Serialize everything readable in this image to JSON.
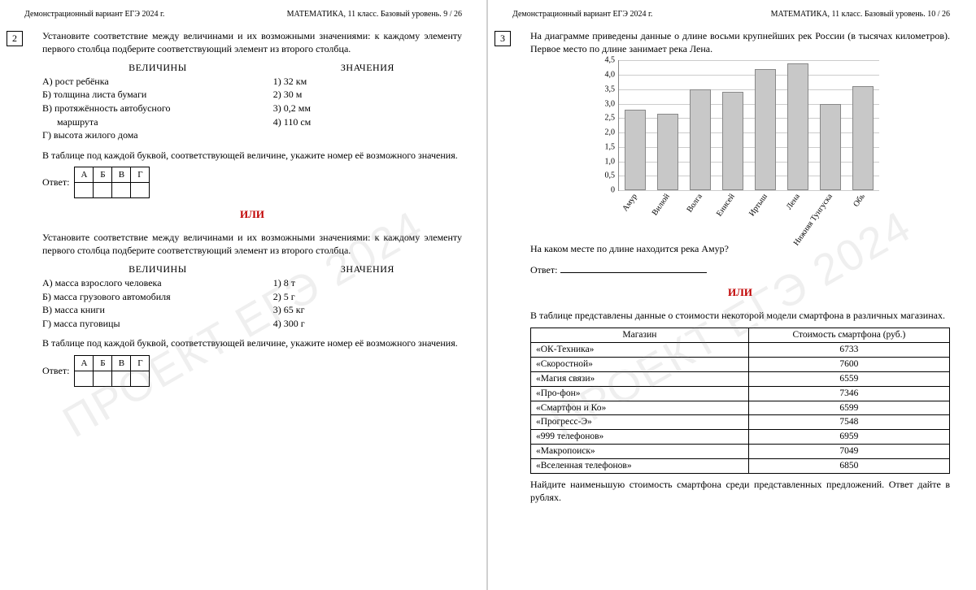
{
  "left": {
    "header_left": "Демонстрационный вариант ЕГЭ 2024 г.",
    "header_right": "МАТЕМАТИКА, 11 класс. Базовый уровень. 9 / 26",
    "qnum": "2",
    "intro": "Установите соответствие между величинами и их возможными значениями: к каждому элементу первого столбца подберите соответствующий элемент из второго столбца.",
    "col1_title": "ВЕЛИЧИНЫ",
    "col2_title": "ЗНАЧЕНИЯ",
    "mag1": [
      "А)  рост ребёнка",
      "Б)  толщина листа бумаги",
      "В)  протяжённость автобусного",
      "      маршрута",
      "Г)  высота жилого дома"
    ],
    "val1": [
      "1)  32 км",
      "2)  30 м",
      "3)  0,2 мм",
      "4)  110 см"
    ],
    "note": "В таблице под каждой буквой, соответствующей величине, укажите номер её возможного значения.",
    "ans_label": "Ответ:",
    "ans_heads": [
      "А",
      "Б",
      "В",
      "Г"
    ],
    "or": "ИЛИ",
    "intro2": "Установите соответствие между величинами и их возможными значениями: к каждому элементу первого столбца подберите соответствующий элемент из второго столбца.",
    "mag2": [
      "А)  масса взрослого человека",
      "Б)  масса грузового автомобиля",
      "В)  масса книги",
      "Г)  масса пуговицы"
    ],
    "val2": [
      "1)  8 т",
      "2)  5 г",
      "3)  65 кг",
      "4)  300 г"
    ]
  },
  "right": {
    "header_left": "Демонстрационный вариант ЕГЭ 2024 г.",
    "header_right": "МАТЕМАТИКА, 11 класс. Базовый уровень. 10 / 26",
    "qnum": "3",
    "intro": "На диаграмме приведены данные о длине восьми крупнейших рек России (в тысячах километров). Первое место по длине занимает река Лена.",
    "chart": {
      "ylim": [
        0,
        4.5
      ],
      "ytick_step": 0.5,
      "yticks": [
        "0",
        "0,5",
        "1,0",
        "1,5",
        "2,0",
        "2,5",
        "3,0",
        "3,5",
        "4,0",
        "4,5"
      ],
      "categories": [
        "Амур",
        "Вилюй",
        "Волга",
        "Енисей",
        "Иртыш",
        "Лена",
        "Нижняя Тунгуска",
        "Обь"
      ],
      "values": [
        2.8,
        2.65,
        3.5,
        3.4,
        4.2,
        4.4,
        3.0,
        3.6
      ],
      "bar_color": "#c8c8c8",
      "grid_color": "#cccccc"
    },
    "question": "На каком месте по длине находится река Амур?",
    "ans_label": "Ответ:",
    "or": "ИЛИ",
    "table_intro": "В таблице представлены данные о стоимости некоторой модели смартфона в различных магазинах.",
    "table": {
      "headers": [
        "Магазин",
        "Стоимость смартфона (руб.)"
      ],
      "rows": [
        [
          "«ОК-Техника»",
          "6733"
        ],
        [
          "«Скоростной»",
          "7600"
        ],
        [
          "«Магия связи»",
          "6559"
        ],
        [
          "«Про-фон»",
          "7346"
        ],
        [
          "«Смартфон и Ко»",
          "6599"
        ],
        [
          "«Прогресс-Э»",
          "7548"
        ],
        [
          "«999 телефонов»",
          "6959"
        ],
        [
          "«Макропоиск»",
          "7049"
        ],
        [
          "«Вселенная телефонов»",
          "6850"
        ]
      ]
    },
    "table_question": "Найдите наименьшую стоимость смартфона среди представленных предложений. Ответ дайте в рублях."
  },
  "watermark": "ПРОЕКТ ЕГЭ 2024"
}
